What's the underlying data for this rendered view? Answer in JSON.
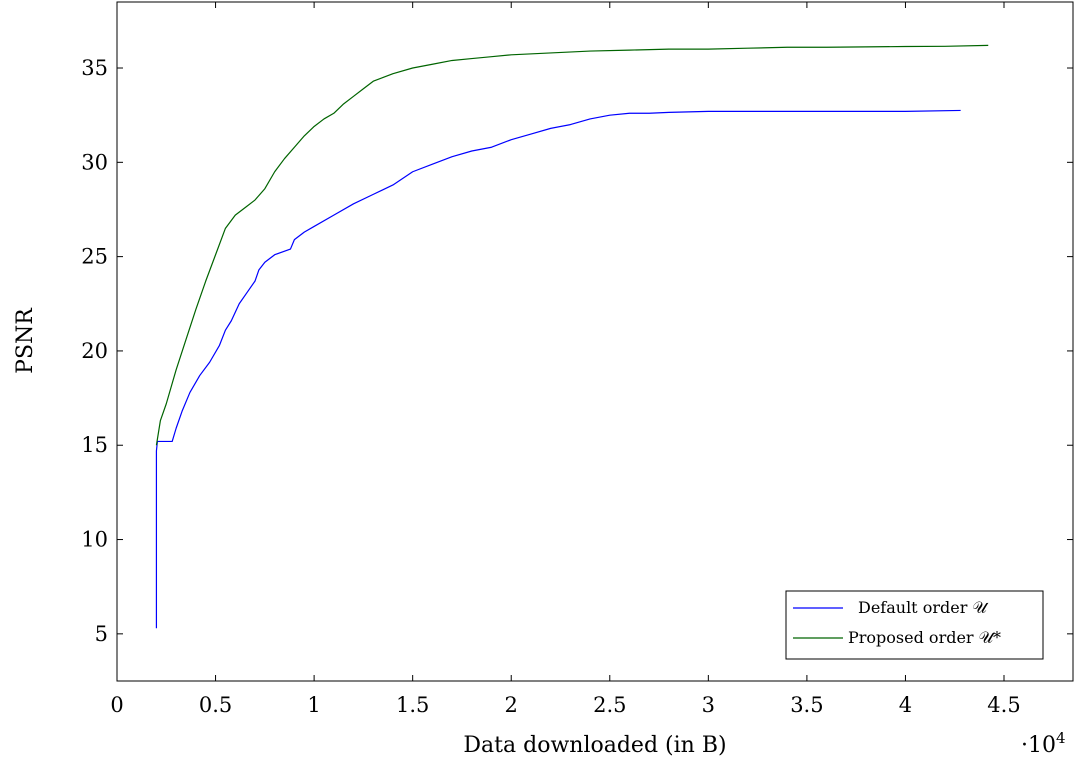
{
  "chart_data": {
    "type": "line",
    "title": "",
    "xlabel": "Data downloaded (in B)",
    "ylabel": "PSNR",
    "x_multiplier_label": "·10",
    "x_multiplier_exp": "4",
    "xlim": [
      0,
      4.85
    ],
    "ylim": [
      2.5,
      38.5
    ],
    "x_ticks": [
      0,
      0.5,
      1,
      1.5,
      2,
      2.5,
      3,
      3.5,
      4,
      4.5
    ],
    "x_tick_labels": [
      "0",
      "0.5",
      "1",
      "1.5",
      "2",
      "2.5",
      "3",
      "3.5",
      "4",
      "4.5"
    ],
    "y_ticks": [
      5,
      10,
      15,
      20,
      25,
      30,
      35
    ],
    "y_tick_labels": [
      "5",
      "10",
      "15",
      "20",
      "25",
      "30",
      "35"
    ],
    "grid": false,
    "legend_position": "bottom-right",
    "series": [
      {
        "name": "Default order 𝒰",
        "color": "#0000ff",
        "x": [
          0.2,
          0.2,
          0.205,
          0.21,
          0.22,
          0.28,
          0.3,
          0.33,
          0.37,
          0.42,
          0.47,
          0.52,
          0.55,
          0.58,
          0.62,
          0.66,
          0.7,
          0.72,
          0.75,
          0.8,
          0.88,
          0.9,
          0.95,
          1.0,
          1.1,
          1.2,
          1.3,
          1.4,
          1.5,
          1.6,
          1.7,
          1.8,
          1.9,
          2.0,
          2.1,
          2.2,
          2.3,
          2.4,
          2.5,
          2.6,
          2.7,
          2.8,
          3.0,
          3.5,
          4.0,
          4.28
        ],
        "values": [
          5.3,
          14.7,
          15.2,
          15.2,
          15.2,
          15.2,
          15.9,
          16.8,
          17.8,
          18.7,
          19.4,
          20.3,
          21.1,
          21.6,
          22.5,
          23.1,
          23.7,
          24.3,
          24.7,
          25.1,
          25.4,
          25.9,
          26.3,
          26.6,
          27.2,
          27.8,
          28.3,
          28.8,
          29.5,
          29.9,
          30.3,
          30.6,
          30.8,
          31.2,
          31.5,
          31.8,
          32.0,
          32.3,
          32.5,
          32.6,
          32.6,
          32.65,
          32.7,
          32.7,
          32.7,
          32.75
        ]
      },
      {
        "name": "Proposed order 𝒰*",
        "color": "#006400",
        "x": [
          0.2,
          0.22,
          0.25,
          0.3,
          0.35,
          0.4,
          0.45,
          0.5,
          0.55,
          0.6,
          0.65,
          0.7,
          0.75,
          0.8,
          0.85,
          0.9,
          0.95,
          1.0,
          1.05,
          1.1,
          1.15,
          1.2,
          1.25,
          1.3,
          1.35,
          1.4,
          1.5,
          1.6,
          1.7,
          1.8,
          1.9,
          2.0,
          2.2,
          2.4,
          2.6,
          2.8,
          3.0,
          3.2,
          3.4,
          3.6,
          3.8,
          4.0,
          4.2,
          4.42
        ],
        "values": [
          15.0,
          16.3,
          17.2,
          19.0,
          20.6,
          22.2,
          23.7,
          25.1,
          26.5,
          27.2,
          27.6,
          28.0,
          28.6,
          29.5,
          30.2,
          30.8,
          31.4,
          31.9,
          32.3,
          32.6,
          33.1,
          33.5,
          33.9,
          34.3,
          34.5,
          34.7,
          35.0,
          35.2,
          35.4,
          35.5,
          35.6,
          35.7,
          35.8,
          35.9,
          35.95,
          36.0,
          36.0,
          36.05,
          36.1,
          36.1,
          36.12,
          36.14,
          36.15,
          36.2
        ]
      }
    ]
  }
}
